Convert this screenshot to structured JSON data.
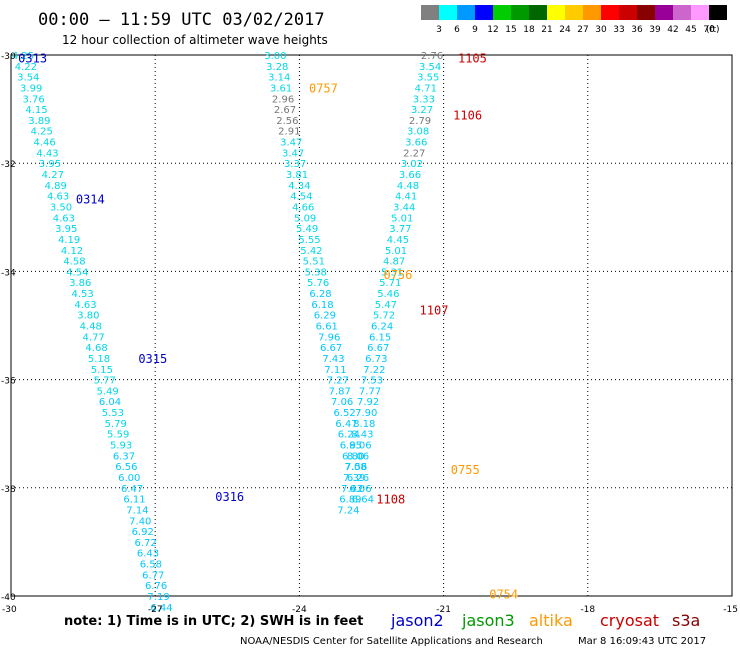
{
  "header": {
    "title": "00:00 – 11:59 UTC 03/02/2017",
    "subtitle": "12 hour collection of altimeter wave heights"
  },
  "colorbar": {
    "unit": "(ft)",
    "colors": [
      "#808080",
      "#00ffff",
      "#0099ff",
      "#0000ff",
      "#00cc00",
      "#009900",
      "#006600",
      "#ffff00",
      "#ffcc00",
      "#ff9900",
      "#ff0000",
      "#cc0000",
      "#880000",
      "#990099",
      "#cc66cc",
      "#ff99ff",
      "#000000"
    ],
    "labels": [
      "3",
      "6",
      "9",
      "12",
      "15",
      "18",
      "21",
      "24",
      "27",
      "30",
      "33",
      "36",
      "39",
      "42",
      "45",
      "70"
    ]
  },
  "axes": {
    "lon_ticks": [
      "-30",
      "-27",
      "-24",
      "-21",
      "-18",
      "-15"
    ],
    "lat_ticks": [
      "-30",
      "-32",
      "-34",
      "-36",
      "-38",
      "-40"
    ]
  },
  "swh_colors": {
    "lt6": "#888888",
    "6to9": "#00ffff",
    "9to12": "#0099ff"
  },
  "passes": [
    {
      "id": "pass-0313",
      "satellite": "jason2",
      "points": [
        [
          -29.75,
          -30.0,
          "4.25"
        ],
        [
          -29.69,
          -30.2,
          "4.22"
        ],
        [
          -29.64,
          -30.4,
          "3.54"
        ],
        [
          -29.58,
          -30.6,
          "3.99"
        ],
        [
          -29.53,
          -30.8,
          "3.76"
        ],
        [
          -29.47,
          -31.0,
          "4.15"
        ],
        [
          -29.41,
          -31.2,
          "3.89"
        ],
        [
          -29.36,
          -31.4,
          "4.25"
        ],
        [
          -29.3,
          -31.6,
          "4.46"
        ],
        [
          -29.24,
          -31.8,
          "4.43"
        ],
        [
          -29.19,
          -32.0,
          "3.95"
        ],
        [
          -29.13,
          -32.2,
          "4.27"
        ],
        [
          -29.07,
          -32.4,
          "4.89"
        ],
        [
          -29.02,
          -32.6,
          "4.63"
        ],
        [
          -28.96,
          -32.8,
          "3.50"
        ],
        [
          -28.9,
          -33.0,
          "4.63"
        ],
        [
          -28.85,
          -33.2,
          "3.95"
        ],
        [
          -28.79,
          -33.4,
          "4.19"
        ],
        [
          -28.73,
          -33.6,
          "4.12"
        ],
        [
          -28.68,
          -33.8,
          "4.58"
        ],
        [
          -28.62,
          -34.0,
          "4.54"
        ],
        [
          -28.56,
          -34.2,
          "3.86"
        ],
        [
          -28.51,
          -34.4,
          "4.53"
        ],
        [
          -28.45,
          -34.6,
          "4.63"
        ],
        [
          -28.39,
          -34.8,
          "3.80"
        ],
        [
          -28.34,
          -35.0,
          "4.48"
        ],
        [
          -28.28,
          -35.2,
          "4.77"
        ],
        [
          -28.22,
          -35.4,
          "4.68"
        ],
        [
          -28.17,
          -35.6,
          "5.18"
        ],
        [
          -28.11,
          -35.8,
          "5.15"
        ],
        [
          -28.05,
          -36.0,
          "5.77"
        ],
        [
          -27.99,
          -36.2,
          "5.49"
        ],
        [
          -27.94,
          -36.4,
          "6.04"
        ],
        [
          -27.88,
          -36.6,
          "5.53"
        ],
        [
          -27.82,
          -36.8,
          "5.79"
        ],
        [
          -27.77,
          -37.0,
          "5.59"
        ],
        [
          -27.71,
          -37.2,
          "5.93"
        ],
        [
          -27.65,
          -37.4,
          "6.37"
        ],
        [
          -27.6,
          -37.6,
          "6.56"
        ],
        [
          -27.54,
          -37.8,
          "6.00"
        ],
        [
          -27.48,
          -38.0,
          "6.47"
        ],
        [
          -27.43,
          -38.2,
          "6.11"
        ],
        [
          -27.37,
          -38.4,
          "7.14"
        ],
        [
          -27.31,
          -38.6,
          "7.40"
        ],
        [
          -27.26,
          -38.8,
          "6.92"
        ],
        [
          -27.2,
          -39.0,
          "6.72"
        ],
        [
          -27.15,
          -39.2,
          "6.43"
        ],
        [
          -27.09,
          -39.4,
          "6.58"
        ],
        [
          -27.04,
          -39.6,
          "6.77"
        ],
        [
          -26.98,
          -39.8,
          "6.76"
        ],
        [
          -26.93,
          -40.0,
          "7.19"
        ],
        [
          -26.87,
          -40.2,
          "6.44"
        ]
      ],
      "labels": [
        {
          "text": "0313",
          "lon": -29.55,
          "lat": -30.05
        },
        {
          "text": "0314",
          "lon": -28.35,
          "lat": -32.65
        },
        {
          "text": "0315",
          "lon": -27.05,
          "lat": -35.6
        },
        {
          "text": "0316",
          "lon": -25.45,
          "lat": -38.15
        }
      ]
    },
    {
      "id": "pass-0757",
      "satellite": "altika",
      "points": [
        [
          -24.5,
          -30.0,
          "3.00"
        ],
        [
          -24.46,
          -30.2,
          "3.28"
        ],
        [
          -24.42,
          -30.4,
          "3.14"
        ],
        [
          -24.38,
          -30.6,
          "3.61"
        ],
        [
          -24.34,
          -30.8,
          "2.96"
        ],
        [
          -24.3,
          -31.0,
          "2.67"
        ],
        [
          -24.25,
          -31.2,
          "2.56"
        ],
        [
          -24.21,
          -31.4,
          "2.91"
        ],
        [
          -24.17,
          -31.6,
          "3.47"
        ],
        [
          -24.13,
          -31.8,
          "3.47"
        ],
        [
          -24.09,
          -32.0,
          "3.37"
        ],
        [
          -24.05,
          -32.2,
          "3.81"
        ],
        [
          -24.0,
          -32.4,
          "4.34"
        ],
        [
          -23.96,
          -32.6,
          "4.54"
        ],
        [
          -23.92,
          -32.8,
          "4.66"
        ],
        [
          -23.88,
          -33.0,
          "5.09"
        ],
        [
          -23.84,
          -33.2,
          "5.49"
        ],
        [
          -23.79,
          -33.4,
          "5.55"
        ],
        [
          -23.75,
          -33.6,
          "5.42"
        ],
        [
          -23.7,
          -33.8,
          "5.51"
        ],
        [
          -23.66,
          -34.0,
          "5.38"
        ],
        [
          -23.61,
          -34.2,
          "5.76"
        ],
        [
          -23.56,
          -34.4,
          "6.28"
        ],
        [
          -23.52,
          -34.6,
          "6.18"
        ],
        [
          -23.47,
          -34.8,
          "6.29"
        ],
        [
          -23.43,
          -35.0,
          "6.61"
        ],
        [
          -23.38,
          -35.2,
          "7.96"
        ],
        [
          -23.34,
          -35.4,
          "6.67"
        ],
        [
          -23.29,
          -35.6,
          "7.43"
        ],
        [
          -23.25,
          -35.8,
          "7.11"
        ],
        [
          -23.2,
          -36.0,
          "7.27"
        ],
        [
          -23.16,
          -36.2,
          "7.87"
        ],
        [
          -23.11,
          -36.4,
          "7.06"
        ],
        [
          -23.06,
          -36.6,
          "6.52"
        ],
        [
          -23.02,
          -36.8,
          "6.47"
        ],
        [
          -22.97,
          -37.0,
          "6.24"
        ],
        [
          -22.93,
          -37.2,
          "6.95"
        ],
        [
          -22.88,
          -37.4,
          "6.80"
        ],
        [
          -22.83,
          -37.6,
          "7.08"
        ],
        [
          -22.78,
          -37.8,
          "6.26"
        ],
        [
          -22.73,
          -38.0,
          "6.06"
        ],
        [
          -22.68,
          -38.2,
          "6.64"
        ]
      ],
      "labels": [
        {
          "text": "0757",
          "lon": -23.5,
          "lat": -30.6
        }
      ]
    },
    {
      "id": "pass-0756",
      "satellite": "altika",
      "points": [
        [
          -21.24,
          -30.0,
          "2.76"
        ],
        [
          -21.28,
          -30.2,
          "3.54"
        ],
        [
          -21.32,
          -30.4,
          "3.55"
        ],
        [
          -21.37,
          -30.6,
          "4.71"
        ],
        [
          -21.41,
          -30.8,
          "3.33"
        ],
        [
          -21.45,
          -31.0,
          "3.27"
        ],
        [
          -21.49,
          -31.2,
          "2.79"
        ],
        [
          -21.53,
          -31.4,
          "3.08"
        ],
        [
          -21.57,
          -31.6,
          "3.66"
        ],
        [
          -21.61,
          -31.8,
          "2.27"
        ],
        [
          -21.66,
          -32.0,
          "3.02"
        ],
        [
          -21.7,
          -32.2,
          "3.66"
        ],
        [
          -21.74,
          -32.4,
          "4.48"
        ],
        [
          -21.78,
          -32.6,
          "4.41"
        ],
        [
          -21.82,
          -32.8,
          "3.44"
        ],
        [
          -21.86,
          -33.0,
          "5.01"
        ],
        [
          -21.9,
          -33.2,
          "3.77"
        ],
        [
          -21.95,
          -33.4,
          "4.45"
        ],
        [
          -21.99,
          -33.6,
          "5.01"
        ],
        [
          -22.03,
          -33.8,
          "4.87"
        ],
        [
          -22.07,
          -34.0,
          "5.31"
        ],
        [
          -22.11,
          -34.2,
          "5.71"
        ],
        [
          -22.15,
          -34.4,
          "5.46"
        ],
        [
          -22.2,
          -34.6,
          "5.47"
        ],
        [
          -22.24,
          -34.8,
          "5.72"
        ],
        [
          -22.28,
          -35.0,
          "6.24"
        ],
        [
          -22.32,
          -35.2,
          "6.15"
        ],
        [
          -22.36,
          -35.4,
          "6.67"
        ],
        [
          -22.4,
          -35.6,
          "6.73"
        ],
        [
          -22.44,
          -35.8,
          "7.22"
        ],
        [
          -22.49,
          -36.0,
          "7.53"
        ],
        [
          -22.53,
          -36.2,
          "7.77"
        ],
        [
          -22.57,
          -36.4,
          "7.92"
        ],
        [
          -22.61,
          -36.6,
          "7.90"
        ],
        [
          -22.65,
          -36.8,
          "8.18"
        ],
        [
          -22.69,
          -37.0,
          "8.43"
        ],
        [
          -22.73,
          -37.2,
          "8.06"
        ],
        [
          -22.78,
          -37.4,
          "8.06"
        ],
        [
          -22.82,
          -37.6,
          "7.56"
        ],
        [
          -22.86,
          -37.8,
          "7.39"
        ],
        [
          -22.9,
          -38.0,
          "7.42"
        ],
        [
          -22.94,
          -38.2,
          "6.89"
        ],
        [
          -22.98,
          -38.4,
          "7.24"
        ]
      ],
      "labels": [
        {
          "text": "0756",
          "lon": -21.95,
          "lat": -34.05
        },
        {
          "text": "0755",
          "lon": -20.55,
          "lat": -37.65
        },
        {
          "text": "0754",
          "lon": -19.75,
          "lat": -39.95
        }
      ]
    },
    {
      "id": "pass-1105",
      "satellite": "cryosat",
      "points": [],
      "labels": [
        {
          "text": "1105",
          "lon": -20.4,
          "lat": -30.05
        },
        {
          "text": "1106",
          "lon": -20.5,
          "lat": -31.1
        },
        {
          "text": "1107",
          "lon": -21.2,
          "lat": -34.7
        },
        {
          "text": "1108",
          "lon": -22.1,
          "lat": -38.2
        }
      ]
    }
  ],
  "satellite_colors": {
    "jason2": "#0000cc",
    "jason3": "#009900",
    "altika": "#ff9900",
    "cryosat": "#cc0000",
    "s3a": "#880000"
  },
  "legend": {
    "note": "note: 1) Time is in UTC; 2) SWH is in feet",
    "satellites": [
      {
        "name": "jason2",
        "color": "#0000cc"
      },
      {
        "name": "jason3",
        "color": "#009900"
      },
      {
        "name": "altika",
        "color": "#ff9900"
      },
      {
        "name": "cryosat",
        "color": "#cc0000"
      },
      {
        "name": "s3a",
        "color": "#880000"
      }
    ]
  },
  "footer": {
    "credit": "NOAA/NESDIS Center for Satellite Applications and Research",
    "timestamp": "Mar  8 16:09:43 UTC 2017"
  }
}
